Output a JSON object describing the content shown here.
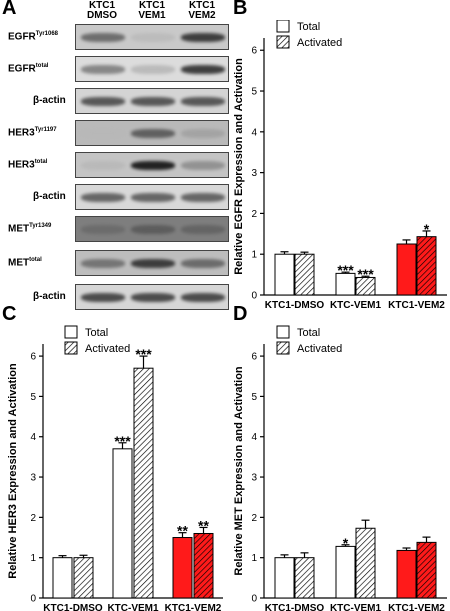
{
  "panels": {
    "A": "A",
    "B": "B",
    "C": "C",
    "D": "D"
  },
  "blot": {
    "lanes": [
      {
        "line1": "KTC1",
        "line2": "DMSO"
      },
      {
        "line1": "KTC1",
        "line2": "VEM1"
      },
      {
        "line1": "KTC1",
        "line2": "VEM2"
      }
    ],
    "rows": [
      {
        "main": "EGFR",
        "sup": "Tyr1068",
        "intensities": [
          0.65,
          0.15,
          0.85
        ],
        "bg": "#c9c9c9"
      },
      {
        "main": "EGFR",
        "sup": "total",
        "intensities": [
          0.55,
          0.25,
          0.85
        ],
        "bg": "#dcdcdc"
      },
      {
        "main": "β-actin",
        "sup": "",
        "intensities": [
          0.75,
          0.75,
          0.75
        ],
        "bg": "#d4d4d4"
      },
      {
        "main": "HER3",
        "sup": "Tyr1197",
        "intensities": [
          0.1,
          0.7,
          0.3
        ],
        "bg": "#b9b9b9"
      },
      {
        "main": "HER3",
        "sup": "total",
        "intensities": [
          0.15,
          0.95,
          0.45
        ],
        "bg": "#c4c4c4"
      },
      {
        "main": "β-actin",
        "sup": "",
        "intensities": [
          0.7,
          0.7,
          0.7
        ],
        "bg": "#d8d8d8"
      },
      {
        "main": "MET",
        "sup": "Tyr1349",
        "intensities": [
          0.55,
          0.65,
          0.6
        ],
        "bg": "#7e7e7e"
      },
      {
        "main": "MET",
        "sup": "total",
        "intensities": [
          0.6,
          0.85,
          0.65
        ],
        "bg": "#bdbdbd"
      },
      {
        "main": "β-actin",
        "sup": "",
        "intensities": [
          0.8,
          0.8,
          0.8
        ],
        "bg": "#d6d6d6"
      }
    ]
  },
  "colors": {
    "total_fill": "#ffffff",
    "red_fill": "#ff1a1a",
    "axis": "#000000",
    "hatch": "#000000"
  },
  "chart_data": [
    {
      "panel": "B",
      "type": "bar",
      "categories": [
        "KTC1-DMSO",
        "KTC-VEM1",
        "KTC1-VEM2"
      ],
      "series": [
        {
          "name": "Total",
          "values": [
            1.0,
            0.53,
            1.25
          ],
          "errors": [
            0.06,
            0.03,
            0.1
          ],
          "sig": [
            "",
            "***",
            ""
          ]
        },
        {
          "name": "Activated",
          "values": [
            1.0,
            0.43,
            1.43
          ],
          "errors": [
            0.05,
            0.03,
            0.14
          ],
          "sig": [
            "",
            "***",
            "*"
          ]
        }
      ],
      "ylabel": "Relative EGFR Expression and Activation",
      "xlabel": "",
      "ylim": [
        0,
        6.3
      ],
      "yticks": [
        0,
        1,
        2,
        3,
        4,
        5,
        6
      ],
      "legend": "top-left",
      "grid": false,
      "red_category": 2
    },
    {
      "panel": "C",
      "type": "bar",
      "categories": [
        "KTC1-DMSO",
        "KTC-VEM1",
        "KTC1-VEM2"
      ],
      "series": [
        {
          "name": "Total",
          "values": [
            1.0,
            3.7,
            1.5
          ],
          "errors": [
            0.05,
            0.15,
            0.12
          ],
          "sig": [
            "",
            "***",
            "**"
          ]
        },
        {
          "name": "Activated",
          "values": [
            1.0,
            5.7,
            1.6
          ],
          "errors": [
            0.06,
            0.3,
            0.15
          ],
          "sig": [
            "",
            "***",
            "**"
          ]
        }
      ],
      "ylabel": "Relative HER3 Expression and Activation",
      "xlabel": "",
      "ylim": [
        0,
        6.3
      ],
      "yticks": [
        0,
        1,
        2,
        3,
        4,
        5,
        6
      ],
      "legend": "top-left",
      "grid": false,
      "red_category": 2
    },
    {
      "panel": "D",
      "type": "bar",
      "categories": [
        "KTC1-DMSO",
        "KTC-VEM1",
        "KTC1-VEM2"
      ],
      "series": [
        {
          "name": "Total",
          "values": [
            1.0,
            1.28,
            1.18
          ],
          "errors": [
            0.07,
            0.04,
            0.06
          ],
          "sig": [
            "",
            "*",
            ""
          ]
        },
        {
          "name": "Activated",
          "values": [
            1.0,
            1.73,
            1.38
          ],
          "errors": [
            0.12,
            0.2,
            0.13
          ],
          "sig": [
            "",
            "",
            ""
          ]
        }
      ],
      "ylabel": "Relative MET Expression and Activation",
      "xlabel": "",
      "ylim": [
        0,
        6.3
      ],
      "yticks": [
        0,
        1,
        2,
        3,
        4,
        5,
        6
      ],
      "legend": "top-left",
      "grid": false,
      "red_category": 2
    }
  ]
}
